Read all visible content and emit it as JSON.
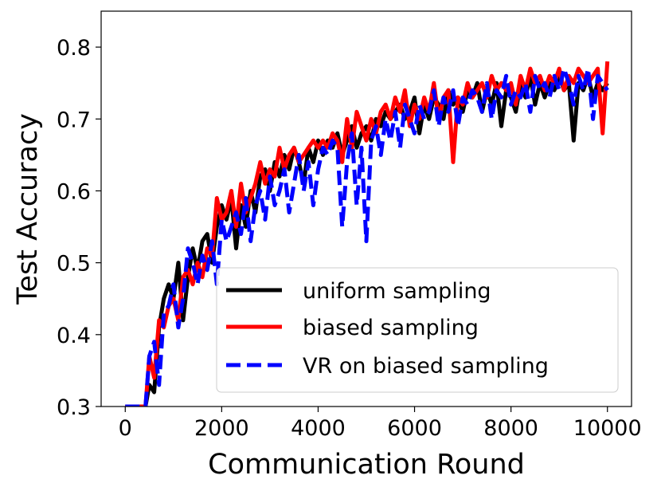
{
  "chart_data": {
    "type": "line",
    "title": "",
    "xlabel": "Communication Round",
    "ylabel": "Test Accuracy",
    "xlim": [
      -500,
      10500
    ],
    "ylim": [
      0.3,
      0.85
    ],
    "xticks": [
      0,
      2000,
      4000,
      6000,
      8000,
      10000
    ],
    "xtick_labels": [
      "0",
      "2000",
      "4000",
      "6000",
      "8000",
      "10000"
    ],
    "yticks": [
      0.3,
      0.4,
      0.5,
      0.6,
      0.7,
      0.8
    ],
    "ytick_labels": [
      "0.3",
      "0.4",
      "0.5",
      "0.6",
      "0.7",
      "0.8"
    ],
    "grid": false,
    "legend_position": "lower-right",
    "series": [
      {
        "name": "uniform sampling",
        "color": "#000000",
        "style": "solid",
        "x": [
          0,
          300,
          420,
          500,
          600,
          700,
          800,
          900,
          1000,
          1100,
          1200,
          1300,
          1400,
          1500,
          1600,
          1700,
          1800,
          1900,
          2000,
          2100,
          2200,
          2300,
          2400,
          2500,
          2600,
          2700,
          2800,
          2900,
          3000,
          3100,
          3200,
          3300,
          3400,
          3500,
          3600,
          3700,
          3800,
          3900,
          4000,
          4100,
          4200,
          4300,
          4400,
          4500,
          4600,
          4700,
          4800,
          4900,
          5000,
          5100,
          5200,
          5300,
          5400,
          5500,
          5600,
          5700,
          5800,
          5900,
          6000,
          6100,
          6200,
          6300,
          6400,
          6500,
          6600,
          6700,
          6800,
          6900,
          7000,
          7100,
          7200,
          7300,
          7400,
          7500,
          7600,
          7700,
          7800,
          7900,
          8000,
          8100,
          8200,
          8300,
          8400,
          8500,
          8600,
          8700,
          8800,
          8900,
          9000,
          9100,
          9200,
          9300,
          9400,
          9500,
          9600,
          9700,
          9800,
          9900,
          10000
        ],
        "values": [
          0.3,
          0.3,
          0.3,
          0.33,
          0.32,
          0.41,
          0.45,
          0.47,
          0.45,
          0.5,
          0.42,
          0.48,
          0.52,
          0.49,
          0.53,
          0.54,
          0.5,
          0.55,
          0.58,
          0.56,
          0.59,
          0.52,
          0.58,
          0.55,
          0.6,
          0.57,
          0.62,
          0.63,
          0.6,
          0.64,
          0.62,
          0.65,
          0.63,
          0.66,
          0.64,
          0.61,
          0.66,
          0.64,
          0.67,
          0.65,
          0.67,
          0.66,
          0.68,
          0.65,
          0.67,
          0.69,
          0.66,
          0.68,
          0.69,
          0.67,
          0.7,
          0.69,
          0.71,
          0.7,
          0.71,
          0.72,
          0.7,
          0.71,
          0.73,
          0.68,
          0.72,
          0.7,
          0.73,
          0.72,
          0.7,
          0.74,
          0.72,
          0.73,
          0.71,
          0.74,
          0.73,
          0.75,
          0.71,
          0.74,
          0.72,
          0.75,
          0.69,
          0.74,
          0.73,
          0.71,
          0.75,
          0.73,
          0.76,
          0.72,
          0.75,
          0.73,
          0.75,
          0.74,
          0.76,
          0.74,
          0.75,
          0.67,
          0.75,
          0.74,
          0.76,
          0.73,
          0.75,
          0.74,
          0.75
        ]
      },
      {
        "name": "biased sampling",
        "color": "#ff0000",
        "style": "solid",
        "x": [
          0,
          300,
          420,
          500,
          600,
          700,
          800,
          900,
          1000,
          1100,
          1200,
          1300,
          1400,
          1500,
          1600,
          1700,
          1800,
          1900,
          2000,
          2100,
          2200,
          2300,
          2400,
          2500,
          2600,
          2700,
          2800,
          2900,
          3000,
          3100,
          3200,
          3300,
          3400,
          3500,
          3600,
          3700,
          3800,
          3900,
          4000,
          4100,
          4200,
          4300,
          4400,
          4500,
          4600,
          4700,
          4800,
          4900,
          5000,
          5100,
          5200,
          5300,
          5400,
          5500,
          5600,
          5700,
          5800,
          5900,
          6000,
          6100,
          6200,
          6300,
          6400,
          6500,
          6600,
          6700,
          6800,
          6900,
          7000,
          7100,
          7200,
          7300,
          7400,
          7500,
          7600,
          7700,
          7800,
          7900,
          8000,
          8100,
          8200,
          8300,
          8400,
          8500,
          8600,
          8700,
          8800,
          8900,
          9000,
          9100,
          9200,
          9300,
          9400,
          9500,
          9600,
          9700,
          9800,
          9900,
          10000
        ],
        "values": [
          0.3,
          0.3,
          0.3,
          0.37,
          0.34,
          0.42,
          0.41,
          0.44,
          0.45,
          0.42,
          0.48,
          0.49,
          0.47,
          0.5,
          0.48,
          0.52,
          0.51,
          0.59,
          0.56,
          0.57,
          0.6,
          0.55,
          0.61,
          0.57,
          0.59,
          0.61,
          0.64,
          0.61,
          0.63,
          0.62,
          0.66,
          0.63,
          0.65,
          0.66,
          0.64,
          0.65,
          0.66,
          0.67,
          0.66,
          0.67,
          0.66,
          0.68,
          0.67,
          0.64,
          0.7,
          0.66,
          0.71,
          0.69,
          0.67,
          0.7,
          0.68,
          0.71,
          0.72,
          0.7,
          0.73,
          0.71,
          0.74,
          0.69,
          0.72,
          0.7,
          0.73,
          0.71,
          0.75,
          0.7,
          0.73,
          0.74,
          0.64,
          0.73,
          0.72,
          0.75,
          0.73,
          0.74,
          0.75,
          0.73,
          0.76,
          0.74,
          0.75,
          0.74,
          0.75,
          0.72,
          0.76,
          0.74,
          0.77,
          0.75,
          0.76,
          0.74,
          0.76,
          0.75,
          0.77,
          0.74,
          0.76,
          0.75,
          0.77,
          0.76,
          0.75,
          0.76,
          0.77,
          0.68,
          0.78
        ]
      },
      {
        "name": "VR on biased sampling",
        "color": "#0000ff",
        "style": "dashed",
        "x": [
          0,
          300,
          420,
          500,
          600,
          700,
          800,
          900,
          1000,
          1100,
          1200,
          1300,
          1400,
          1500,
          1600,
          1700,
          1800,
          1900,
          2000,
          2100,
          2200,
          2300,
          2400,
          2500,
          2600,
          2700,
          2800,
          2900,
          3000,
          3100,
          3200,
          3300,
          3400,
          3500,
          3600,
          3700,
          3800,
          3900,
          4000,
          4100,
          4200,
          4300,
          4400,
          4500,
          4600,
          4700,
          4800,
          4900,
          5000,
          5100,
          5200,
          5300,
          5400,
          5500,
          5600,
          5700,
          5800,
          5900,
          6000,
          6100,
          6200,
          6300,
          6400,
          6500,
          6600,
          6700,
          6800,
          6900,
          7000,
          7100,
          7200,
          7300,
          7400,
          7500,
          7600,
          7700,
          7800,
          7900,
          8000,
          8100,
          8200,
          8300,
          8400,
          8500,
          8600,
          8700,
          8800,
          8900,
          9000,
          9100,
          9200,
          9300,
          9400,
          9500,
          9600,
          9700,
          9800,
          9900,
          10000
        ],
        "values": [
          0.3,
          0.3,
          0.3,
          0.37,
          0.39,
          0.33,
          0.43,
          0.44,
          0.47,
          0.41,
          0.45,
          0.52,
          0.5,
          0.47,
          0.51,
          0.49,
          0.53,
          0.47,
          0.56,
          0.53,
          0.55,
          0.57,
          0.54,
          0.59,
          0.53,
          0.58,
          0.6,
          0.56,
          0.62,
          0.58,
          0.6,
          0.63,
          0.57,
          0.61,
          0.65,
          0.6,
          0.64,
          0.58,
          0.63,
          0.66,
          0.65,
          0.67,
          0.66,
          0.55,
          0.64,
          0.68,
          0.58,
          0.66,
          0.53,
          0.67,
          0.69,
          0.65,
          0.7,
          0.67,
          0.71,
          0.66,
          0.72,
          0.7,
          0.68,
          0.72,
          0.7,
          0.71,
          0.74,
          0.69,
          0.73,
          0.71,
          0.74,
          0.69,
          0.73,
          0.72,
          0.74,
          0.73,
          0.71,
          0.75,
          0.7,
          0.74,
          0.73,
          0.76,
          0.72,
          0.74,
          0.73,
          0.75,
          0.71,
          0.76,
          0.74,
          0.75,
          0.73,
          0.76,
          0.74,
          0.77,
          0.75,
          0.72,
          0.76,
          0.74,
          0.77,
          0.7,
          0.76,
          0.75,
          0.74
        ]
      }
    ]
  }
}
